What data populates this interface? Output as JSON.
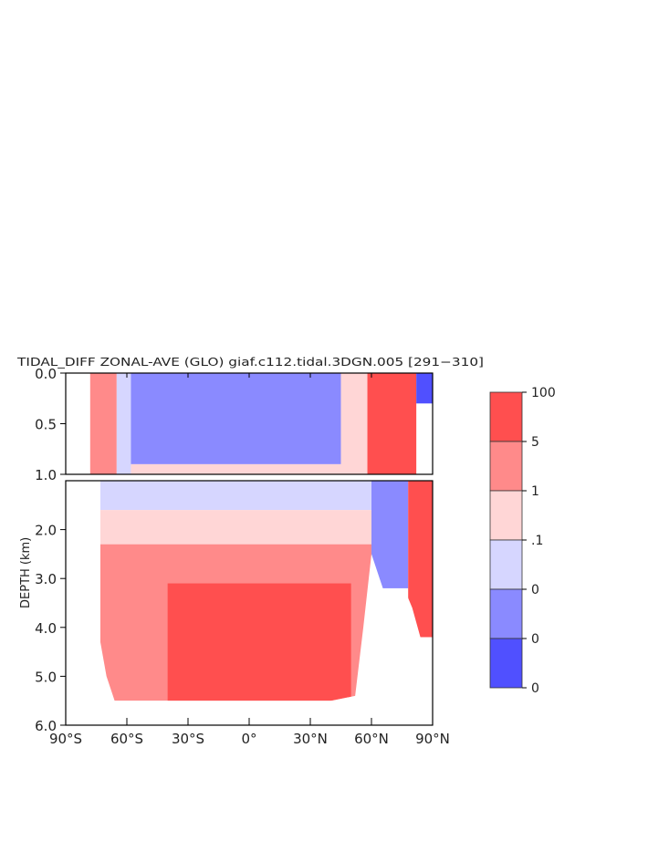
{
  "chart_data": {
    "type": "heatmap",
    "title": "TIDAL_DIFF ZONAL-AVE (GLO) giaf.c112.tidal.3DGN.005 [291−310]",
    "xlabel": "",
    "ylabel": "DEPTH (km)",
    "x_ticks": [
      "90°S",
      "60°S",
      "30°S",
      "0°",
      "30°N",
      "60°N",
      "90°N"
    ],
    "x_tick_values": [
      -90,
      -60,
      -30,
      0,
      30,
      60,
      90
    ],
    "top_panel": {
      "ylim": [
        0.0,
        1.0
      ],
      "y_ticks": [
        "0.0",
        "0.5",
        "1.0"
      ],
      "y_tick_values": [
        0.0,
        0.5,
        1.0
      ]
    },
    "bottom_panel": {
      "ylim": [
        1.0,
        6.0
      ],
      "y_ticks": [
        "2.0",
        "3.0",
        "4.0",
        "5.0",
        "6.0"
      ],
      "y_tick_values": [
        2.0,
        3.0,
        4.0,
        5.0,
        6.0
      ]
    },
    "xlim": [
      -90,
      90
    ],
    "grid": false,
    "legend_placement": "right",
    "colorbar": {
      "labels": [
        "100",
        "5",
        "1",
        ".1",
        "0",
        "0",
        "0"
      ],
      "colors": [
        "#ff4f4f",
        "#ff8a8a",
        "#ffd6d6",
        "#d6d6ff",
        "#8a8aff",
        "#5050ff"
      ]
    },
    "bottom_max_depth_km": [
      [
        -73,
        4.3
      ],
      [
        -70,
        5.0
      ],
      [
        -66,
        5.5
      ],
      [
        -60,
        5.5
      ],
      [
        -50,
        5.5
      ],
      [
        -40,
        5.5
      ],
      [
        -20,
        5.5
      ],
      [
        0,
        5.5
      ],
      [
        20,
        5.5
      ],
      [
        40,
        5.5
      ],
      [
        52,
        5.4
      ],
      [
        56,
        4.0
      ],
      [
        60,
        2.5
      ],
      [
        64,
        3.0
      ],
      [
        68,
        3.5
      ],
      [
        72,
        3.5
      ],
      [
        76,
        3.2
      ],
      [
        80,
        3.6
      ],
      [
        84,
        4.2
      ],
      [
        90,
        4.2
      ]
    ],
    "top_left_edge_lat": -78,
    "regions": [
      {
        "panel": "top",
        "lat": [
          -78,
          -65
        ],
        "depth": [
          0.0,
          1.0
        ],
        "level": 2
      },
      {
        "panel": "top",
        "lat": [
          -65,
          -58
        ],
        "depth": [
          0.0,
          1.0
        ],
        "level": 4
      },
      {
        "panel": "top",
        "lat": [
          -58,
          45
        ],
        "depth": [
          0.0,
          0.9
        ],
        "level": 5
      },
      {
        "panel": "top",
        "lat": [
          -58,
          45
        ],
        "depth": [
          0.9,
          1.0
        ],
        "level": 3
      },
      {
        "panel": "top",
        "lat": [
          45,
          58
        ],
        "depth": [
          0.0,
          1.0
        ],
        "level": 3
      },
      {
        "panel": "top",
        "lat": [
          58,
          82
        ],
        "depth": [
          0.0,
          1.0
        ],
        "level": 1
      },
      {
        "panel": "top",
        "lat": [
          82,
          90
        ],
        "depth": [
          0.0,
          0.3
        ],
        "level": 6
      },
      {
        "panel": "bottom",
        "lat": [
          -78,
          60
        ],
        "depth": [
          1.0,
          1.6
        ],
        "level": 4
      },
      {
        "panel": "bottom",
        "lat": [
          -78,
          60
        ],
        "depth": [
          1.6,
          2.3
        ],
        "level": 3
      },
      {
        "panel": "bottom",
        "lat": [
          -78,
          60
        ],
        "depth": [
          2.3,
          5.5
        ],
        "level": 2
      },
      {
        "panel": "bottom",
        "lat": [
          -40,
          50
        ],
        "depth": [
          3.1,
          5.5
        ],
        "level": 1
      },
      {
        "panel": "bottom",
        "lat": [
          60,
          78
        ],
        "depth": [
          1.0,
          3.2
        ],
        "level": 5
      },
      {
        "panel": "bottom",
        "lat": [
          78,
          90
        ],
        "depth": [
          1.0,
          4.2
        ],
        "level": 1
      }
    ]
  }
}
